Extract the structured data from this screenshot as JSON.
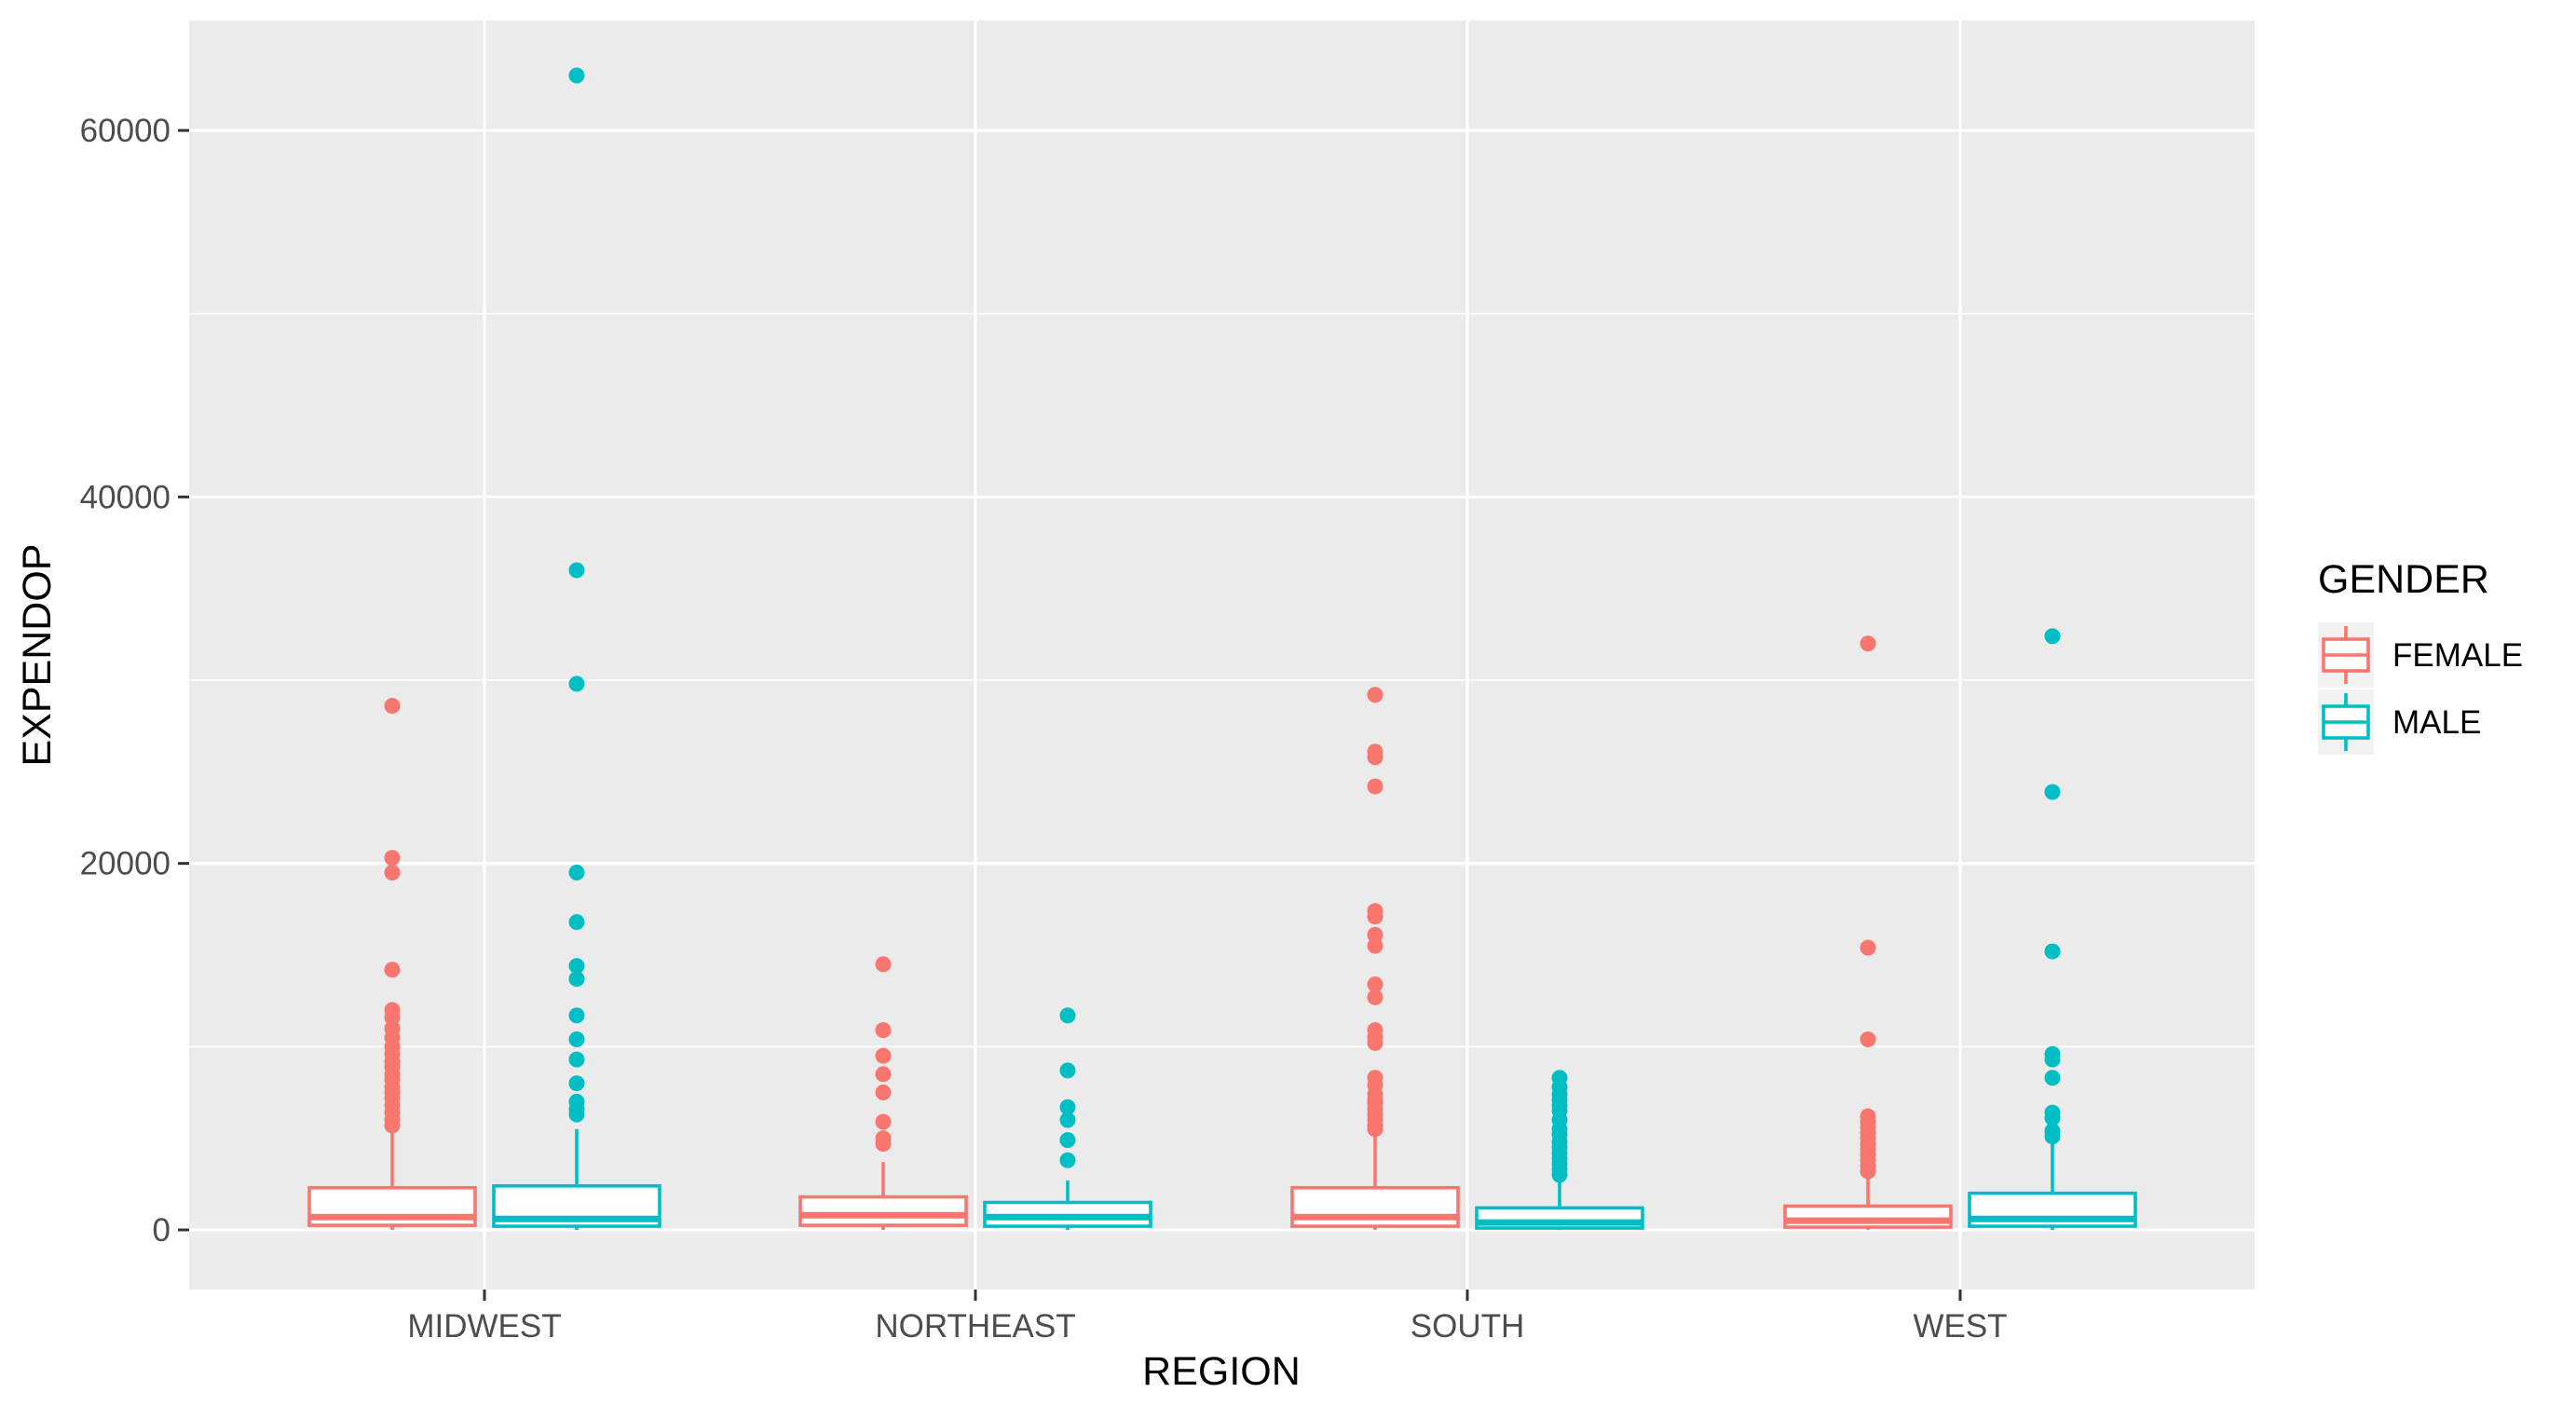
{
  "chart_data": {
    "type": "boxplot",
    "xlabel": "REGION",
    "ylabel": "EXPENDOP",
    "categories": [
      "MIDWEST",
      "NORTHEAST",
      "SOUTH",
      "WEST"
    ],
    "ylim": [
      -3000,
      66000
    ],
    "yticks": [
      0,
      20000,
      40000,
      60000
    ],
    "yticks_labels": [
      "0",
      "20000",
      "40000",
      "60000"
    ],
    "grid": true,
    "background": "#ebebeb",
    "legend": {
      "title": "GENDER",
      "position": "right",
      "entries": [
        {
          "label": "FEMALE",
          "color": "#f8766d"
        },
        {
          "label": "MALE",
          "color": "#00bfc4"
        }
      ]
    },
    "series": [
      {
        "name": "FEMALE",
        "color": "#f8766d",
        "boxes": [
          {
            "category": "MIDWEST",
            "min": 0,
            "q1": 250,
            "median": 700,
            "q3": 2300,
            "max": 5400,
            "outliers": [
              28600,
              20300,
              19500,
              14200,
              12000,
              11600,
              11000,
              10500,
              10000,
              9600,
              9200,
              8900,
              8500,
              8200,
              7800,
              7500,
              7200,
              6800,
              6400,
              6000,
              5700
            ]
          },
          {
            "category": "NORTHEAST",
            "min": 0,
            "q1": 250,
            "median": 800,
            "q3": 1800,
            "max": 3700,
            "outliers": [
              14500,
              10900,
              9500,
              8500,
              7500,
              5900,
              5000,
              4700
            ]
          },
          {
            "category": "SOUTH",
            "min": 0,
            "q1": 200,
            "median": 700,
            "q3": 2300,
            "max": 5200,
            "outliers": [
              29200,
              26100,
              25800,
              24200,
              17400,
              17100,
              16100,
              15500,
              13400,
              12700,
              10900,
              10500,
              10200,
              8300,
              7900,
              7400,
              7100,
              6900,
              6600,
              6300,
              6000,
              5700,
              5500
            ]
          },
          {
            "category": "WEST",
            "min": 0,
            "q1": 150,
            "median": 500,
            "q3": 1300,
            "max": 2900,
            "outliers": [
              32000,
              15400,
              10400,
              6200,
              5900,
              5600,
              5300,
              5000,
              4700,
              4400,
              4100,
              3800,
              3500,
              3200
            ]
          }
        ]
      },
      {
        "name": "MALE",
        "color": "#00bfc4",
        "boxes": [
          {
            "category": "MIDWEST",
            "min": 0,
            "q1": 200,
            "median": 600,
            "q3": 2400,
            "max": 5500,
            "outliers": [
              63000,
              36000,
              29800,
              19500,
              16800,
              14400,
              13700,
              11700,
              10400,
              9300,
              8000,
              7000,
              6600,
              6300
            ]
          },
          {
            "category": "NORTHEAST",
            "min": 0,
            "q1": 200,
            "median": 700,
            "q3": 1500,
            "max": 2700,
            "outliers": [
              11700,
              8700,
              6700,
              6000,
              4900,
              3800
            ]
          },
          {
            "category": "SOUTH",
            "min": 0,
            "q1": 100,
            "median": 400,
            "q3": 1200,
            "max": 2700,
            "outliers": [
              8300,
              7800,
              7400,
              7100,
              6800,
              6500,
              6000,
              5500,
              5200,
              4800,
              4500,
              4200,
              3900,
              3600,
              3300,
              3000
            ]
          },
          {
            "category": "WEST",
            "min": 0,
            "q1": 200,
            "median": 600,
            "q3": 2000,
            "max": 4900,
            "outliers": [
              32400,
              23900,
              15200,
              9600,
              9300,
              8300,
              6400,
              6100,
              5400,
              5100
            ]
          }
        ]
      }
    ]
  }
}
